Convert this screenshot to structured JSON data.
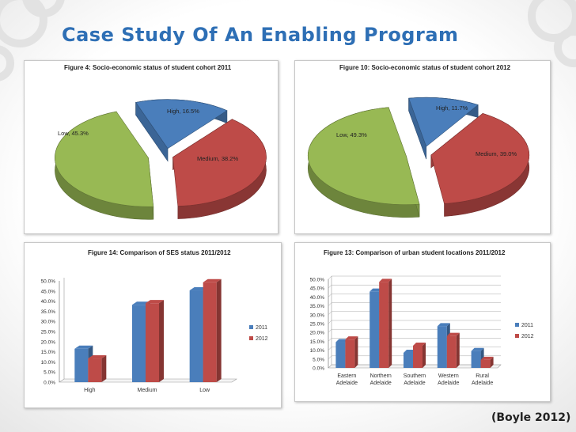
{
  "slide": {
    "title": "Case Study Of An Enabling Program",
    "caption": "(Boyle 2012)"
  },
  "colors": {
    "high": "#4a7ebb",
    "medium": "#be4b48",
    "low": "#98b954",
    "series_2011": "#4a7ebb",
    "series_2012": "#be4b48"
  },
  "chart_data": [
    {
      "type": "pie",
      "title": "Figure 4: Socio-economic status of student cohort 2011",
      "labels": [
        "High, 16.5%",
        "Medium, 38.2%",
        "Low, 45.3%"
      ],
      "categories": [
        "High",
        "Medium",
        "Low"
      ],
      "values": [
        16.5,
        38.2,
        45.3
      ],
      "exploded": true
    },
    {
      "type": "pie",
      "title": "Figure 10: Socio-economic status of student cohort 2012",
      "labels": [
        "High, 11.7%",
        "Medium, 39.0%",
        "Low, 49.3%"
      ],
      "categories": [
        "High",
        "Medium",
        "Low"
      ],
      "values": [
        11.7,
        39.0,
        49.3
      ],
      "exploded": true
    },
    {
      "type": "bar",
      "title": "Figure 14: Comparison of SES status 2011/2012",
      "categories": [
        [
          "High"
        ],
        [
          "Medium"
        ],
        [
          "Low"
        ]
      ],
      "series": [
        {
          "name": "2011",
          "values": [
            16.5,
            38.2,
            45.3
          ]
        },
        {
          "name": "2012",
          "values": [
            11.7,
            39.0,
            49.3
          ]
        }
      ],
      "ylim": [
        0,
        50
      ],
      "ytick_step": 5,
      "ytick_labels": [
        "0.0%",
        "5.0%",
        "10.0%",
        "15.0%",
        "20.0%",
        "25.0%",
        "30.0%",
        "35.0%",
        "40.0%",
        "45.0%",
        "50.0%"
      ],
      "grid": false,
      "legend": "right"
    },
    {
      "type": "bar",
      "title": "Figure 13: Comparison of urban student locations 2011/2012",
      "categories": [
        [
          "Eastern",
          "Adelaide"
        ],
        [
          "Northern",
          "Adelaide"
        ],
        [
          "Southern",
          "Adelaide"
        ],
        [
          "Western",
          "Adelaide"
        ],
        [
          "Rural",
          "Adelaide"
        ]
      ],
      "series": [
        {
          "name": "2011",
          "values": [
            14.5,
            43.0,
            8.5,
            23.5,
            9.5
          ]
        },
        {
          "name": "2012",
          "values": [
            16.0,
            48.5,
            12.5,
            18.0,
            4.5
          ]
        }
      ],
      "ylim": [
        0,
        50
      ],
      "ytick_step": 5,
      "ytick_labels": [
        "0.0%",
        "5.0%",
        "10.0%",
        "15.0%",
        "20.0%",
        "25.0%",
        "30.0%",
        "35.0%",
        "40.0%",
        "45.0%",
        "50.0%"
      ],
      "grid": true,
      "legend": "right"
    }
  ]
}
